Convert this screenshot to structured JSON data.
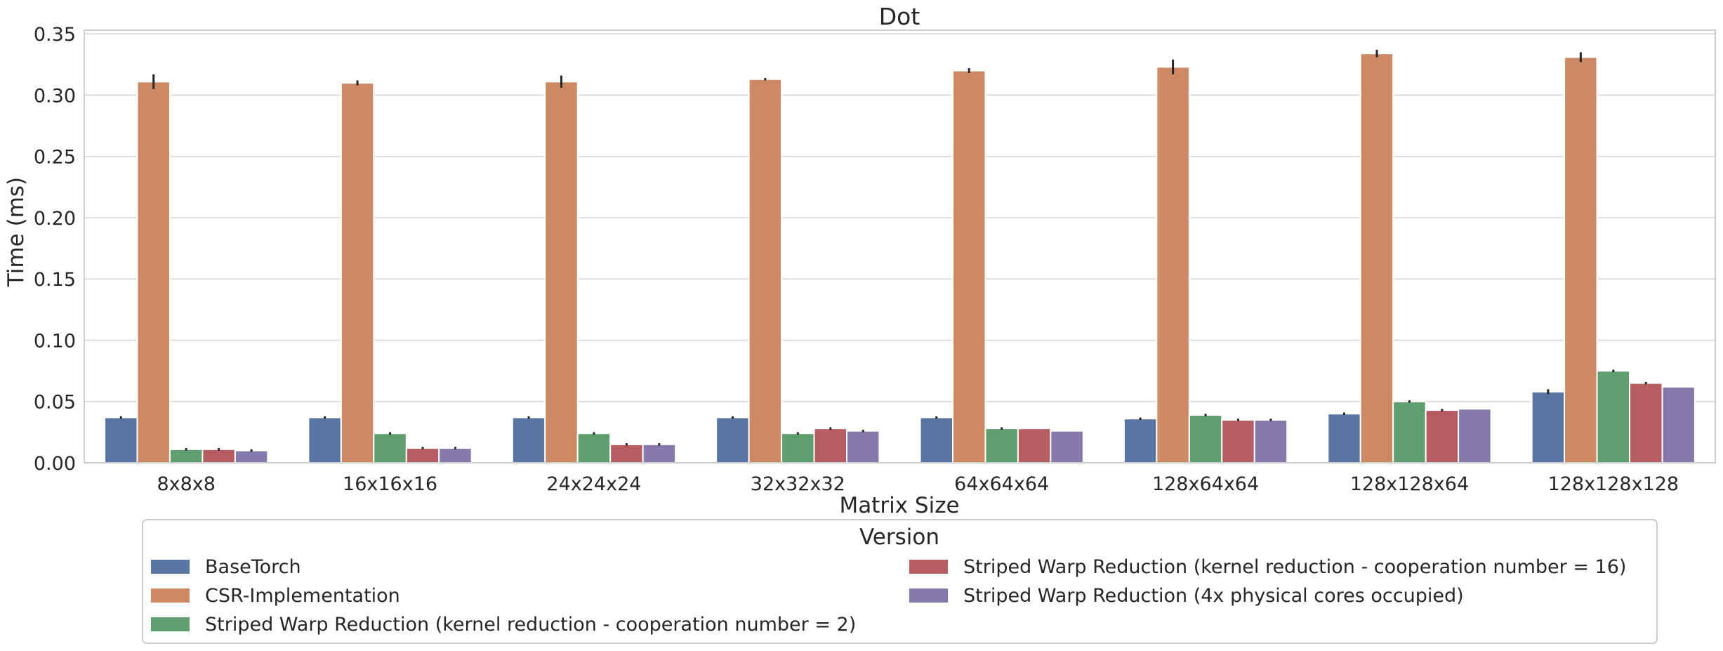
{
  "chart_data": {
    "type": "bar",
    "title": "Dot",
    "xlabel": "Matrix Size",
    "ylabel": "Time (ms)",
    "ylim": [
      0,
      0.353
    ],
    "yticks": [
      0.0,
      0.05,
      0.1,
      0.15,
      0.2,
      0.25,
      0.3,
      0.35
    ],
    "grid": true,
    "legend_title": "Version",
    "legend_placement": "bottom-center",
    "categories": [
      "8x8x8",
      "16x16x16",
      "24x24x24",
      "32x32x32",
      "64x64x64",
      "128x64x64",
      "128x128x64",
      "128x128x128"
    ],
    "series": [
      {
        "name": "BaseTorch",
        "color": "#5875a4",
        "values": [
          0.037,
          0.037,
          0.037,
          0.037,
          0.037,
          0.036,
          0.04,
          0.058
        ],
        "err": [
          0.001,
          0.001,
          0.001,
          0.001,
          0.001,
          0.001,
          0.001,
          0.002
        ]
      },
      {
        "name": "CSR-Implementation",
        "color": "#cc8963",
        "values": [
          0.311,
          0.31,
          0.311,
          0.313,
          0.32,
          0.323,
          0.334,
          0.331
        ],
        "err": [
          0.006,
          0.002,
          0.005,
          0.001,
          0.002,
          0.006,
          0.003,
          0.004
        ]
      },
      {
        "name": "Striped Warp Reduction (kernel reduction - cooperation number = 2)",
        "color": "#5f9e6e",
        "values": [
          0.011,
          0.024,
          0.024,
          0.024,
          0.028,
          0.039,
          0.05,
          0.075
        ],
        "err": [
          0.001,
          0.001,
          0.001,
          0.001,
          0.001,
          0.001,
          0.001,
          0.001
        ]
      },
      {
        "name": "Striped Warp Reduction (kernel reduction - cooperation number = 16)",
        "color": "#b55d60",
        "values": [
          0.011,
          0.012,
          0.015,
          0.028,
          0.028,
          0.035,
          0.043,
          0.065
        ],
        "err": [
          0.001,
          0.001,
          0.001,
          0.001,
          0.0,
          0.001,
          0.001,
          0.001
        ]
      },
      {
        "name": "Striped Warp Reduction (4x physical cores occupied)",
        "color": "#857aab",
        "values": [
          0.01,
          0.012,
          0.015,
          0.026,
          0.026,
          0.035,
          0.044,
          0.062
        ],
        "err": [
          0.001,
          0.001,
          0.001,
          0.001,
          0.0,
          0.001,
          0.0,
          0.0
        ]
      }
    ]
  }
}
